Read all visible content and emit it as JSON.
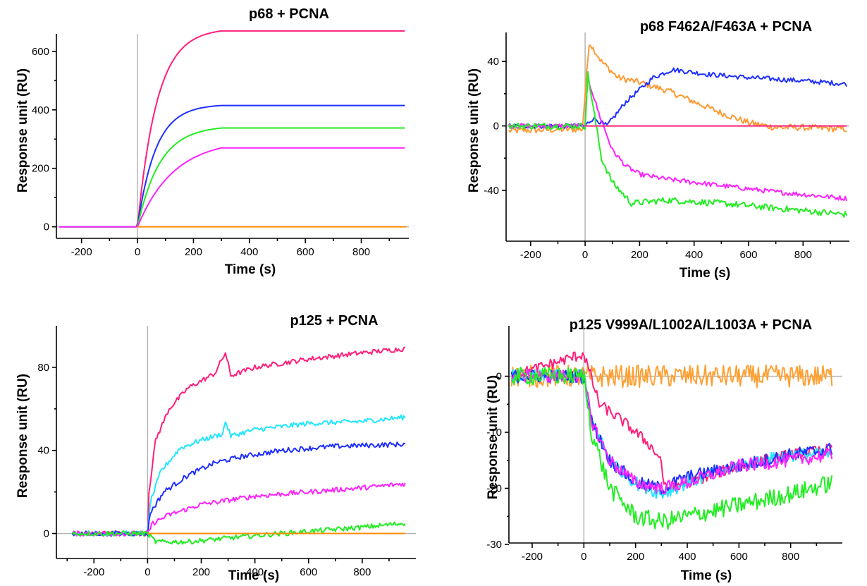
{
  "chart_data": [
    {
      "type": "line",
      "title": "p68 + PCNA",
      "xlabel": "Time (s)",
      "ylabel": "Response unit (RU)",
      "xlim": [
        -290,
        970
      ],
      "ylim": [
        -25,
        660
      ],
      "xticks": [
        -200,
        0,
        200,
        400,
        600,
        800
      ],
      "yticks": [
        0,
        200,
        400,
        600
      ],
      "xtick_labels": [
        "-200",
        "0",
        "200",
        "400",
        "600",
        "800"
      ],
      "ytick_labels": [
        "0",
        "200",
        "400",
        "600"
      ],
      "grid": false,
      "series": [
        {
          "color": "#ff1f7a",
          "model": "assoc",
          "plateau": 670,
          "tau": 70,
          "tend": 300
        },
        {
          "color": "#1f2fff",
          "model": "assoc",
          "plateau": 415,
          "tau": 65,
          "tend": 300
        },
        {
          "color": "#22ee22",
          "model": "assoc",
          "plateau": 338,
          "tau": 80,
          "tend": 300
        },
        {
          "color": "#ff22ff",
          "model": "assoc",
          "plateau": 270,
          "tau": 130,
          "tend": 300
        },
        {
          "color": "#ff8c00",
          "model": "flat",
          "value": 0
        }
      ]
    },
    {
      "type": "line",
      "title": "p68 F462A/F463A  + PCNA",
      "xlabel": "Time (s)",
      "ylabel": "Response unit (RU)",
      "xlim": [
        -290,
        970
      ],
      "ylim": [
        -68,
        58
      ],
      "xticks": [
        -200,
        0,
        200,
        400,
        600,
        800
      ],
      "yticks": [
        -40,
        0,
        40
      ],
      "xtick_labels": [
        "-200",
        "0",
        "200",
        "400",
        "600",
        "800"
      ],
      "ytick_labels": [
        "-40",
        "0",
        "40"
      ],
      "grid": false,
      "series": [
        {
          "color": "#ff9933",
          "model": "pts",
          "noise": 2,
          "points": [
            [
              -280,
              -3
            ],
            [
              -10,
              -2
            ],
            [
              0,
              20
            ],
            [
              15,
              52
            ],
            [
              60,
              40
            ],
            [
              120,
              30
            ],
            [
              200,
              27
            ],
            [
              300,
              22
            ],
            [
              400,
              15
            ],
            [
              500,
              8
            ],
            [
              600,
              2
            ],
            [
              700,
              -1
            ],
            [
              800,
              -1
            ],
            [
              960,
              -2
            ]
          ]
        },
        {
          "color": "#1f2fff",
          "model": "pts",
          "noise": 1.5,
          "points": [
            [
              -280,
              0
            ],
            [
              0,
              0
            ],
            [
              30,
              5
            ],
            [
              80,
              0
            ],
            [
              150,
              15
            ],
            [
              250,
              30
            ],
            [
              320,
              35
            ],
            [
              450,
              32
            ],
            [
              600,
              30
            ],
            [
              800,
              28
            ],
            [
              960,
              26
            ]
          ]
        },
        {
          "color": "#ff22ff",
          "model": "pts",
          "noise": 1.5,
          "points": [
            [
              -280,
              0
            ],
            [
              0,
              0
            ],
            [
              10,
              30
            ],
            [
              50,
              8
            ],
            [
              100,
              -15
            ],
            [
              150,
              -25
            ],
            [
              200,
              -30
            ],
            [
              300,
              -33
            ],
            [
              500,
              -37
            ],
            [
              700,
              -41
            ],
            [
              960,
              -45
            ]
          ]
        },
        {
          "color": "#22ee22",
          "model": "pts",
          "noise": 2,
          "points": [
            [
              -280,
              0
            ],
            [
              0,
              0
            ],
            [
              10,
              32
            ],
            [
              60,
              -20
            ],
            [
              100,
              -35
            ],
            [
              170,
              -48
            ],
            [
              300,
              -46
            ],
            [
              500,
              -48
            ],
            [
              700,
              -51
            ],
            [
              960,
              -55
            ]
          ]
        },
        {
          "color": "#ff1f7a",
          "model": "pts",
          "noise": 0,
          "points": [
            [
              0,
              0
            ],
            [
              960,
              0
            ]
          ]
        }
      ]
    },
    {
      "type": "line",
      "title": "p125 + PCNA",
      "xlabel": "Time (s)",
      "ylabel": "Response unit (RU)",
      "xlim": [
        -340,
        1000
      ],
      "ylim": [
        -10,
        100
      ],
      "xticks": [
        -200,
        0,
        200,
        400,
        600,
        800
      ],
      "yticks": [
        0,
        40,
        80
      ],
      "xtick_labels": [
        "-200",
        "0",
        "200",
        "400",
        "600",
        "800"
      ],
      "ytick_labels": [
        "0",
        "40",
        "80"
      ],
      "grid": false,
      "series": [
        {
          "color": "#ff1f7a",
          "model": "pts",
          "noise": 1.2,
          "points": [
            [
              -280,
              0
            ],
            [
              0,
              0
            ],
            [
              5,
              20
            ],
            [
              30,
              45
            ],
            [
              80,
              60
            ],
            [
              150,
              70
            ],
            [
              250,
              77
            ],
            [
              290,
              87
            ],
            [
              310,
              76
            ],
            [
              400,
              80
            ],
            [
              600,
              84
            ],
            [
              800,
              87
            ],
            [
              960,
              89
            ]
          ]
        },
        {
          "color": "#22e5ff",
          "model": "pts",
          "noise": 1.2,
          "points": [
            [
              -280,
              0
            ],
            [
              0,
              0
            ],
            [
              10,
              15
            ],
            [
              50,
              30
            ],
            [
              120,
              41
            ],
            [
              200,
              45
            ],
            [
              280,
              48
            ],
            [
              290,
              54
            ],
            [
              310,
              47
            ],
            [
              400,
              50
            ],
            [
              600,
              53
            ],
            [
              800,
              54
            ],
            [
              960,
              56
            ]
          ]
        },
        {
          "color": "#1f2fff",
          "model": "pts",
          "noise": 1.2,
          "points": [
            [
              -280,
              0
            ],
            [
              0,
              0
            ],
            [
              10,
              10
            ],
            [
              60,
              20
            ],
            [
              150,
              28
            ],
            [
              250,
              34
            ],
            [
              350,
              37
            ],
            [
              500,
              40
            ],
            [
              700,
              42
            ],
            [
              960,
              43
            ]
          ]
        },
        {
          "color": "#ff22ff",
          "model": "pts",
          "noise": 1.2,
          "points": [
            [
              -280,
              0
            ],
            [
              0,
              0
            ],
            [
              20,
              5
            ],
            [
              80,
              9
            ],
            [
              200,
              14
            ],
            [
              400,
              18
            ],
            [
              600,
              20
            ],
            [
              800,
              22
            ],
            [
              960,
              24
            ]
          ]
        },
        {
          "color": "#22ee22",
          "model": "pts",
          "noise": 1.2,
          "points": [
            [
              -280,
              0
            ],
            [
              0,
              0
            ],
            [
              30,
              -4
            ],
            [
              150,
              -4
            ],
            [
              400,
              -1
            ],
            [
              600,
              1
            ],
            [
              800,
              3
            ],
            [
              960,
              5
            ]
          ]
        },
        {
          "color": "#ff8c00",
          "model": "pts",
          "noise": 0,
          "points": [
            [
              0,
              0
            ],
            [
              960,
              0
            ]
          ]
        }
      ]
    },
    {
      "type": "line",
      "title": "p125 V999A/L1002A/L1003A  + PCNA",
      "xlabel": "Time (s)",
      "ylabel": "Response unit (RU)",
      "xlim": [
        -290,
        1000
      ],
      "ylim": [
        -29.5,
        9
      ],
      "xticks": [
        -200,
        0,
        200,
        400,
        600,
        800
      ],
      "yticks": [
        -30,
        -20,
        -10,
        0
      ],
      "xtick_labels": [
        "-200",
        "0",
        "200",
        "400",
        "600",
        "800"
      ],
      "ytick_labels": [
        "-30",
        "-20",
        "-10",
        "0"
      ],
      "grid": false,
      "series": [
        {
          "color": "#ffa033",
          "model": "pts",
          "noise": 2,
          "points": [
            [
              -280,
              0
            ],
            [
              0,
              0
            ],
            [
              960,
              0
            ]
          ]
        },
        {
          "color": "#ff1f7a",
          "model": "pts",
          "noise": 1,
          "points": [
            [
              -280,
              0
            ],
            [
              0,
              4
            ],
            [
              60,
              -5
            ],
            [
              150,
              -8
            ],
            [
              250,
              -12
            ],
            [
              300,
              -15
            ],
            [
              310,
              -20
            ],
            [
              400,
              -19
            ],
            [
              600,
              -16
            ],
            [
              800,
              -14
            ],
            [
              960,
              -13
            ]
          ]
        },
        {
          "color": "#22e5ff",
          "model": "pts",
          "noise": 1.2,
          "points": [
            [
              -280,
              0
            ],
            [
              0,
              0
            ],
            [
              30,
              -8
            ],
            [
              100,
              -15
            ],
            [
              200,
              -19
            ],
            [
              300,
              -21
            ],
            [
              400,
              -19
            ],
            [
              600,
              -16
            ],
            [
              800,
              -14
            ],
            [
              960,
              -14
            ]
          ]
        },
        {
          "color": "#1f2fff",
          "model": "pts",
          "noise": 1.2,
          "points": [
            [
              -280,
              0
            ],
            [
              0,
              0
            ],
            [
              30,
              -8
            ],
            [
              100,
              -15
            ],
            [
              200,
              -19
            ],
            [
              300,
              -20
            ],
            [
              400,
              -18
            ],
            [
              600,
              -16
            ],
            [
              800,
              -14
            ],
            [
              960,
              -13
            ]
          ]
        },
        {
          "color": "#ff22ff",
          "model": "pts",
          "noise": 1.2,
          "points": [
            [
              -280,
              0
            ],
            [
              0,
              0
            ],
            [
              30,
              -8
            ],
            [
              100,
              -15
            ],
            [
              200,
              -19
            ],
            [
              300,
              -20
            ],
            [
              400,
              -19
            ],
            [
              600,
              -16
            ],
            [
              800,
              -15
            ],
            [
              960,
              -14
            ]
          ]
        },
        {
          "color": "#22ee22",
          "model": "pts",
          "noise": 1.6,
          "points": [
            [
              -280,
              0
            ],
            [
              0,
              0
            ],
            [
              30,
              -10
            ],
            [
              100,
              -20
            ],
            [
              200,
              -25
            ],
            [
              300,
              -26
            ],
            [
              400,
              -25
            ],
            [
              600,
              -23
            ],
            [
              800,
              -21
            ],
            [
              960,
              -19
            ]
          ]
        }
      ]
    }
  ]
}
